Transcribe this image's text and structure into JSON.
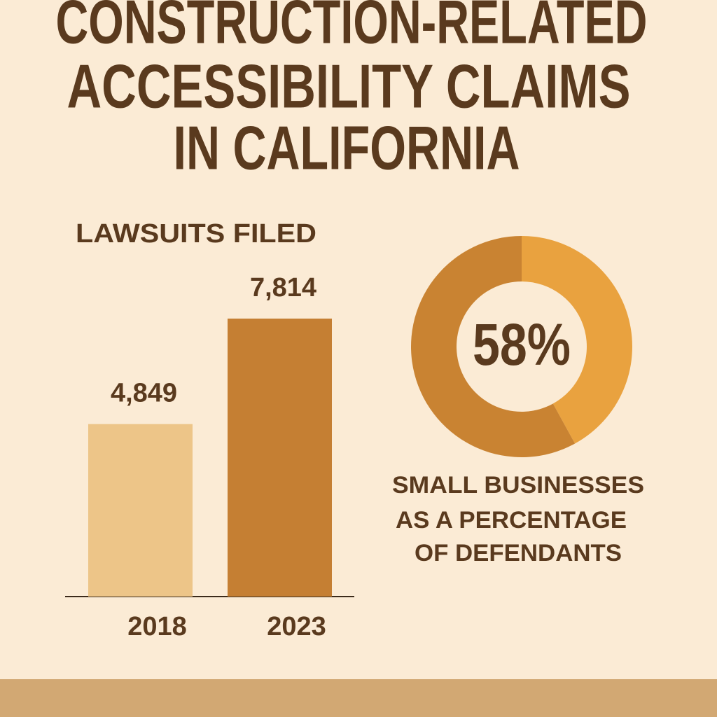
{
  "title": [
    "CONSTRUCTION-RELATED",
    "ACCESSIBILITY CLAIMS",
    "IN CALIFORNIA"
  ],
  "chart_data": [
    {
      "type": "bar",
      "title": "LAWSUITS FILED",
      "categories": [
        "2018",
        "2023"
      ],
      "values": [
        4849,
        7814
      ],
      "value_labels": [
        "4,849",
        "7,814"
      ],
      "colors": [
        "#edc588",
        "#c57f33"
      ]
    },
    {
      "type": "donut",
      "values": [
        58
      ],
      "value_labels": [
        "58%"
      ],
      "colors": [
        "#c98332",
        "#e9a23f"
      ],
      "caption": [
        "SMALL BUSINESSES",
        "AS A PERCENTAGE",
        "OF DEFENDANTS"
      ]
    }
  ]
}
